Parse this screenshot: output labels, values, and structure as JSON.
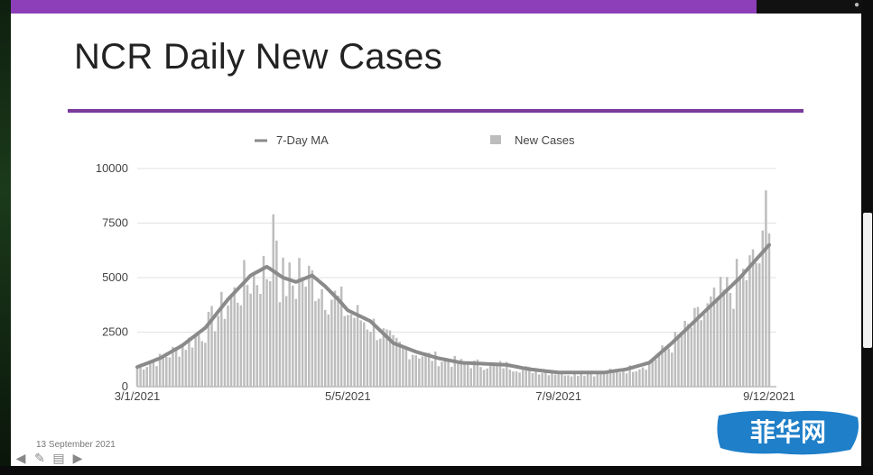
{
  "slide": {
    "title": "NCR Daily New Cases",
    "date": "13 September 2021",
    "watermark_text": "菲华网",
    "top_right_text": "●"
  },
  "colors": {
    "accent_bar": "#8c3fb9",
    "title_rule": "#7a3a9a",
    "bars": "#bdbdbd",
    "ma_line": "#8a8a8a",
    "watermark_bg": "#1f7fc8"
  },
  "icons": [
    "back-arrow-icon",
    "pen-icon",
    "menu-icon",
    "forward-arrow-icon"
  ],
  "chart_data": {
    "type": "bar",
    "title": "",
    "xlabel": "",
    "ylabel": "",
    "ylim": [
      0,
      10000
    ],
    "yticks": [
      "0",
      "2500",
      "5000",
      "7500",
      "10000"
    ],
    "xtick_labels": [
      "3/1/2021",
      "5/5/2021",
      "7/9/2021",
      "9/12/2021"
    ],
    "x_start": "3/1/2021",
    "x_end": "9/12/2021",
    "grid": "horizontal",
    "legend_position": "top",
    "series": [
      {
        "name": "7-Day MA",
        "type": "line",
        "keypoints": [
          [
            "3/1/2021",
            900
          ],
          [
            "3/8/2021",
            1300
          ],
          [
            "3/15/2021",
            1900
          ],
          [
            "3/22/2021",
            2700
          ],
          [
            "3/29/2021",
            4000
          ],
          [
            "4/5/2021",
            5100
          ],
          [
            "4/10/2021",
            5500
          ],
          [
            "4/15/2021",
            5000
          ],
          [
            "4/19/2021",
            4800
          ],
          [
            "4/24/2021",
            5100
          ],
          [
            "4/28/2021",
            4600
          ],
          [
            "5/2/2021",
            4000
          ],
          [
            "5/5/2021",
            3500
          ],
          [
            "5/12/2021",
            3000
          ],
          [
            "5/19/2021",
            2000
          ],
          [
            "5/26/2021",
            1600
          ],
          [
            "6/2/2021",
            1300
          ],
          [
            "6/9/2021",
            1100
          ],
          [
            "6/16/2021",
            1050
          ],
          [
            "6/23/2021",
            1000
          ],
          [
            "6/30/2021",
            800
          ],
          [
            "7/9/2021",
            650
          ],
          [
            "7/16/2021",
            650
          ],
          [
            "7/23/2021",
            650
          ],
          [
            "7/30/2021",
            800
          ],
          [
            "8/6/2021",
            1100
          ],
          [
            "8/13/2021",
            2000
          ],
          [
            "8/20/2021",
            3000
          ],
          [
            "8/27/2021",
            4000
          ],
          [
            "9/3/2021",
            5000
          ],
          [
            "9/9/2021",
            6000
          ],
          [
            "9/12/2021",
            6500
          ]
        ]
      },
      {
        "name": "New Cases",
        "type": "bar",
        "spikes": [
          [
            "4/12/2021",
            7900
          ],
          [
            "4/13/2021",
            6700
          ],
          [
            "4/20/2021",
            5900
          ],
          [
            "9/11/2021",
            9000
          ]
        ]
      }
    ]
  }
}
